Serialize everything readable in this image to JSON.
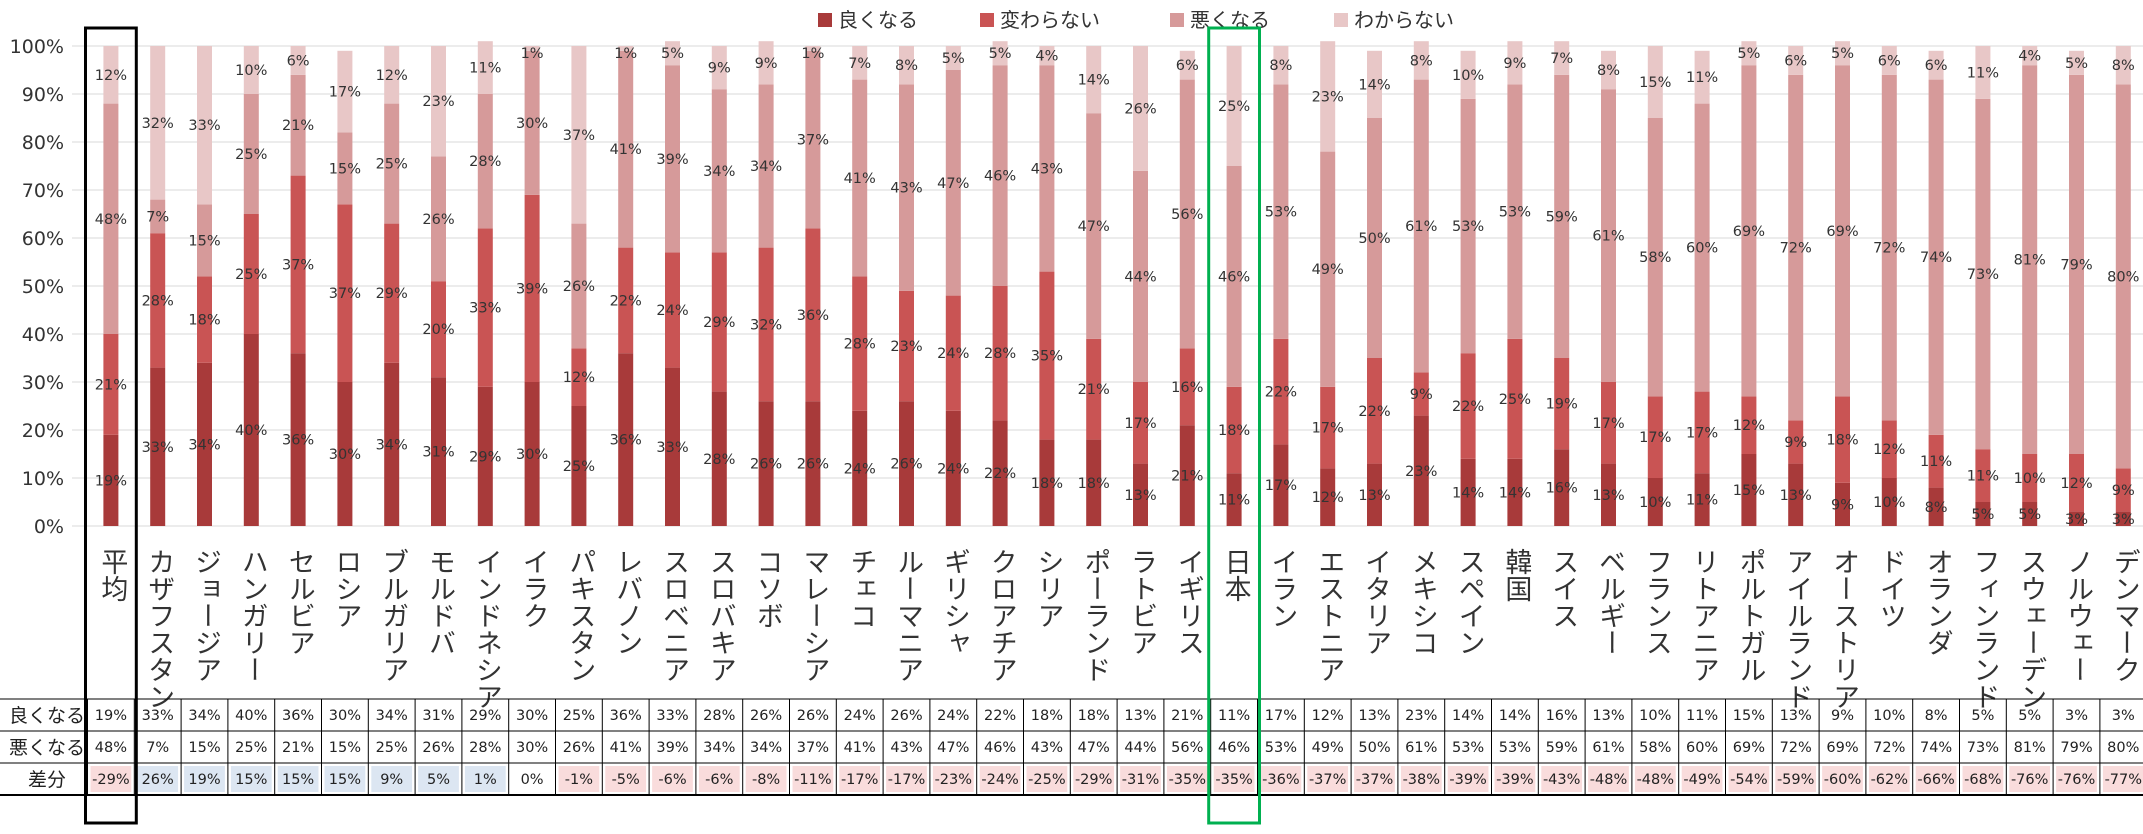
{
  "chart_data": {
    "type": "bar",
    "stacked": true,
    "percent_stacked": true,
    "ylim": [
      0,
      100
    ],
    "yticks": [
      "0%",
      "10%",
      "20%",
      "30%",
      "40%",
      "50%",
      "60%",
      "70%",
      "80%",
      "90%",
      "100%"
    ],
    "legend_position": "top-center",
    "grid": true,
    "categories": [
      "平均",
      "カザフスタン",
      "ジョージア",
      "ハンガリー",
      "セルビア",
      "ロシア",
      "ブルガリア",
      "モルドバ",
      "インドネシア",
      "イラク",
      "パキスタン",
      "レバノン",
      "スロベニア",
      "スロバキア",
      "コソボ",
      "マレーシア",
      "チェコ",
      "ルーマニア",
      "ギリシャ",
      "クロアチア",
      "シリア",
      "ポーランド",
      "ラトビア",
      "イギリス",
      "日本",
      "イラン",
      "エストニア",
      "イタリア",
      "メキシコ",
      "スペイン",
      "韓国",
      "スイス",
      "ベルギー",
      "フランス",
      "リトアニア",
      "ポルトガル",
      "アイルランド",
      "オーストリア",
      "ドイツ",
      "オランダ",
      "フィンランド",
      "スウェーデン",
      "ノルウェー",
      "デンマーク"
    ],
    "series": [
      {
        "name": "良くなる",
        "color": "#a83a3a",
        "values": [
          19,
          33,
          34,
          40,
          36,
          30,
          34,
          31,
          29,
          30,
          25,
          36,
          33,
          28,
          26,
          26,
          24,
          26,
          24,
          22,
          18,
          18,
          13,
          21,
          11,
          17,
          12,
          13,
          23,
          14,
          14,
          16,
          13,
          10,
          11,
          15,
          13,
          9,
          10,
          8,
          5,
          5,
          3,
          3
        ]
      },
      {
        "name": "変わらない",
        "color": "#c95454",
        "values": [
          21,
          28,
          18,
          25,
          37,
          37,
          29,
          20,
          33,
          39,
          12,
          22,
          24,
          29,
          32,
          36,
          28,
          23,
          24,
          28,
          35,
          21,
          17,
          16,
          18,
          22,
          17,
          22,
          9,
          22,
          25,
          19,
          17,
          17,
          17,
          12,
          9,
          18,
          12,
          11,
          11,
          10,
          12,
          9
        ]
      },
      {
        "name": "悪くなる",
        "color": "#d69a9a",
        "values": [
          48,
          7,
          15,
          25,
          21,
          15,
          25,
          26,
          28,
          30,
          26,
          41,
          39,
          34,
          34,
          37,
          41,
          43,
          47,
          46,
          43,
          47,
          44,
          56,
          46,
          53,
          49,
          50,
          61,
          53,
          53,
          59,
          61,
          58,
          60,
          69,
          72,
          69,
          72,
          74,
          73,
          81,
          79,
          80
        ]
      },
      {
        "name": "わからない",
        "color": "#e8c7c7",
        "values": [
          12,
          32,
          33,
          10,
          6,
          17,
          12,
          23,
          11,
          1,
          37,
          1,
          5,
          9,
          9,
          1,
          7,
          8,
          5,
          5,
          4,
          14,
          26,
          6,
          25,
          8,
          23,
          14,
          8,
          10,
          9,
          7,
          8,
          15,
          11,
          5,
          6,
          5,
          6,
          6,
          11,
          4,
          5,
          8
        ]
      }
    ],
    "data_table": {
      "rows": [
        {
          "label": "良くなる",
          "values": [
            "19%",
            "33%",
            "34%",
            "40%",
            "36%",
            "30%",
            "34%",
            "31%",
            "29%",
            "30%",
            "25%",
            "36%",
            "33%",
            "28%",
            "26%",
            "26%",
            "24%",
            "26%",
            "24%",
            "22%",
            "18%",
            "18%",
            "13%",
            "21%",
            "11%",
            "17%",
            "12%",
            "13%",
            "23%",
            "14%",
            "14%",
            "16%",
            "13%",
            "10%",
            "11%",
            "15%",
            "13%",
            "9%",
            "10%",
            "8%",
            "5%",
            "5%",
            "3%",
            "3%"
          ]
        },
        {
          "label": "悪くなる",
          "values": [
            "48%",
            "7%",
            "15%",
            "25%",
            "21%",
            "15%",
            "25%",
            "26%",
            "28%",
            "30%",
            "26%",
            "41%",
            "39%",
            "34%",
            "34%",
            "37%",
            "41%",
            "43%",
            "47%",
            "46%",
            "43%",
            "47%",
            "44%",
            "56%",
            "46%",
            "53%",
            "49%",
            "50%",
            "61%",
            "53%",
            "53%",
            "59%",
            "61%",
            "58%",
            "60%",
            "69%",
            "72%",
            "69%",
            "72%",
            "74%",
            "73%",
            "81%",
            "79%",
            "80%"
          ]
        },
        {
          "label": "差分",
          "values": [
            "-29%",
            "26%",
            "19%",
            "15%",
            "15%",
            "15%",
            "9%",
            "5%",
            "1%",
            "0%",
            "-1%",
            "-5%",
            "-6%",
            "-6%",
            "-8%",
            "-11%",
            "-17%",
            "-17%",
            "-23%",
            "-24%",
            "-25%",
            "-29%",
            "-31%",
            "-35%",
            "-35%",
            "-36%",
            "-37%",
            "-37%",
            "-38%",
            "-39%",
            "-39%",
            "-43%",
            "-48%",
            "-48%",
            "-49%",
            "-54%",
            "-59%",
            "-60%",
            "-62%",
            "-66%",
            "-68%",
            "-76%",
            "-76%",
            "-77%"
          ]
        }
      ],
      "positive_fill": "#dce6f2",
      "negative_fill": "#f9dcdc"
    },
    "highlights": [
      {
        "category": "平均",
        "color": "#000000"
      },
      {
        "category": "日本",
        "color": "#00b050"
      }
    ]
  }
}
